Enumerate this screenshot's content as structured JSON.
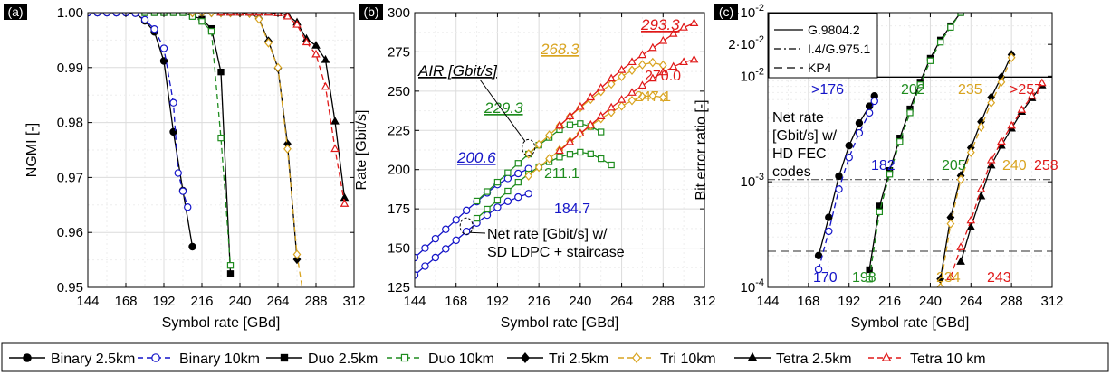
{
  "colors": {
    "binary": "#1414c8",
    "duo": "#1e8c1e",
    "tri": "#d9a420",
    "tetra": "#e01818",
    "black": "#000000",
    "grid": "#dcdcdc"
  },
  "legend": {
    "entries": [
      {
        "label": "Binary 2.5km",
        "color": "#000000",
        "dash": "solid",
        "marker": "circle-filled"
      },
      {
        "label": "Binary 10km",
        "color": "#1414c8",
        "dash": "dashed",
        "marker": "circle-open"
      },
      {
        "label": "Duo 2.5km",
        "color": "#000000",
        "dash": "solid",
        "marker": "square-filled"
      },
      {
        "label": "Duo 10km",
        "color": "#1e8c1e",
        "dash": "dashed",
        "marker": "square-open"
      },
      {
        "label": "Tri 2.5km",
        "color": "#000000",
        "dash": "solid",
        "marker": "diamond-filled"
      },
      {
        "label": "Tri 10km",
        "color": "#d9a420",
        "dash": "dashed",
        "marker": "diamond-open"
      },
      {
        "label": "Tetra 2.5km",
        "color": "#000000",
        "dash": "solid",
        "marker": "triangle-filled"
      },
      {
        "label": "Tetra 10 km",
        "color": "#e01818",
        "dash": "dashed",
        "marker": "triangle-open"
      }
    ]
  },
  "chart_data": [
    {
      "type": "line",
      "panel_label": "(a)",
      "xlabel": "Symbol rate [GBd]",
      "ylabel": "NGMI [-]",
      "xlim": [
        144,
        312
      ],
      "ylim": [
        0.95,
        1.0
      ],
      "xticks": [
        144,
        168,
        192,
        216,
        240,
        264,
        288,
        312
      ],
      "xtick_labels": [
        "144",
        "168",
        "192",
        "216",
        "240",
        "264",
        "288",
        "312"
      ],
      "yticks": [
        0.95,
        0.96,
        0.97,
        0.98,
        0.99,
        1.0
      ],
      "ytick_labels": [
        "0.95",
        "0.96",
        "0.97",
        "0.98",
        "0.99",
        "1.00"
      ],
      "grid": true,
      "series": [
        {
          "name": "Binary 2.5km",
          "x": [
            144,
            150,
            156,
            162,
            168,
            174,
            180,
            186,
            192,
            198,
            204,
            210
          ],
          "y": [
            1.0,
            1.0,
            1.0,
            1.0,
            1.0,
            0.9999,
            0.9985,
            0.9965,
            0.9912,
            0.9783,
            0.9676,
            0.9574
          ]
        },
        {
          "name": "Binary 10km",
          "x": [
            144,
            150,
            156,
            162,
            168,
            174,
            180,
            186,
            192,
            198,
            201,
            204,
            207
          ],
          "y": [
            1.0,
            1.0,
            1.0,
            1.0,
            1.0,
            0.9999,
            0.9987,
            0.997,
            0.9935,
            0.9836,
            0.9708,
            0.9675,
            0.9646
          ]
        },
        {
          "name": "Duo 2.5km",
          "x": [
            180,
            186,
            192,
            198,
            204,
            210,
            216,
            222,
            228,
            234
          ],
          "y": [
            1.0,
            1.0,
            1.0,
            1.0,
            1.0,
            0.9994,
            0.9988,
            0.9971,
            0.9892,
            0.9525
          ]
        },
        {
          "name": "Duo 10km",
          "x": [
            180,
            186,
            192,
            198,
            204,
            210,
            216,
            222,
            228,
            234
          ],
          "y": [
            1.0,
            1.0,
            1.0,
            1.0,
            1.0,
            0.9993,
            0.9984,
            0.9966,
            0.9772,
            0.954
          ]
        },
        {
          "name": "Tri 2.5km",
          "x": [
            210,
            216,
            222,
            228,
            234,
            240,
            246,
            252,
            258,
            264,
            270,
            276
          ],
          "y": [
            1.0,
            1.0,
            1.0,
            1.0,
            1.0,
            1.0,
            0.9999,
            0.9989,
            0.9948,
            0.9899,
            0.9761,
            0.9551
          ]
        },
        {
          "name": "Tri 10km",
          "x": [
            210,
            216,
            222,
            228,
            234,
            240,
            246,
            252,
            258,
            264,
            270,
            276,
            282
          ],
          "y": [
            1.0,
            1.0,
            1.0,
            1.0,
            1.0,
            1.0,
            0.9999,
            0.9988,
            0.9945,
            0.99,
            0.9752,
            0.956,
            0.9448
          ]
        },
        {
          "name": "Tetra 2.5km",
          "x": [
            228,
            234,
            240,
            246,
            252,
            258,
            264,
            270,
            276,
            282,
            288,
            294,
            300,
            306
          ],
          "y": [
            1.0,
            1.0,
            1.0,
            1.0,
            1.0,
            1.0,
            0.9999,
            0.9996,
            0.9982,
            0.9952,
            0.994,
            0.9914,
            0.9802,
            0.9663
          ]
        },
        {
          "name": "Tetra 10 km",
          "x": [
            228,
            234,
            240,
            246,
            252,
            258,
            264,
            270,
            276,
            282,
            288,
            294,
            300,
            306
          ],
          "y": [
            1.0,
            1.0,
            1.0,
            1.0,
            1.0,
            1.0,
            0.9999,
            0.9993,
            0.9978,
            0.9946,
            0.9924,
            0.9865,
            0.9752,
            0.9652
          ]
        }
      ]
    },
    {
      "type": "line",
      "panel_label": "(b)",
      "xlabel": "Symbol rate [GBd]",
      "ylabel": "Rate [Gbit/s]",
      "xlim": [
        144,
        312
      ],
      "ylim": [
        125,
        300
      ],
      "xticks": [
        144,
        168,
        192,
        216,
        240,
        264,
        288,
        312
      ],
      "xtick_labels": [
        "144",
        "168",
        "192",
        "216",
        "240",
        "264",
        "288",
        "312"
      ],
      "yticks": [
        125,
        150,
        175,
        200,
        225,
        250,
        275,
        300
      ],
      "ytick_labels": [
        "125",
        "150",
        "175",
        "200",
        "225",
        "250",
        "275",
        "300"
      ],
      "grid": true,
      "series": [
        {
          "name": "Binary AIR",
          "x": [
            144,
            150,
            156,
            162,
            168,
            174,
            180,
            186,
            192,
            198,
            204,
            210
          ],
          "y": [
            144.0,
            150.0,
            156.0,
            162.0,
            168.0,
            174.0,
            179.6,
            185.2,
            190.5,
            194.4,
            197.5,
            200.6
          ]
        },
        {
          "name": "Binary net",
          "x": [
            144,
            150,
            156,
            162,
            168,
            174,
            180,
            186,
            192,
            198,
            204,
            210
          ],
          "y": [
            132.8,
            138.5,
            144.0,
            149.5,
            155.0,
            160.6,
            166.0,
            171.0,
            176.0,
            179.8,
            182.5,
            184.7
          ]
        },
        {
          "name": "Duo AIR",
          "x": [
            180,
            186,
            192,
            198,
            204,
            210,
            216,
            222,
            228,
            234,
            240,
            246,
            252
          ],
          "y": [
            180.0,
            186.0,
            192.0,
            198.0,
            204.0,
            209.9,
            215.6,
            220.5,
            225.5,
            228.5,
            229.3,
            227.5,
            224.0
          ]
        },
        {
          "name": "Duo net",
          "x": [
            180,
            186,
            192,
            198,
            204,
            210,
            216,
            222,
            228,
            234,
            240,
            246,
            252,
            258
          ],
          "y": [
            169.0,
            174.8,
            180.5,
            186.3,
            192.0,
            197.2,
            201.8,
            205.0,
            208.0,
            209.8,
            211.1,
            210.0,
            207.0,
            203.0
          ]
        },
        {
          "name": "Tri AIR",
          "x": [
            210,
            216,
            222,
            228,
            234,
            240,
            246,
            252,
            258,
            264,
            270,
            276,
            282,
            288
          ],
          "y": [
            210.0,
            216.0,
            222.0,
            228.0,
            233.8,
            239.5,
            244.8,
            249.8,
            254.5,
            259.3,
            263.3,
            266.8,
            268.3,
            266.5
          ]
        },
        {
          "name": "Tri net",
          "x": [
            210,
            216,
            222,
            228,
            234,
            240,
            246,
            252,
            258,
            264,
            270,
            276,
            282,
            288
          ],
          "y": [
            196.0,
            201.5,
            207.0,
            212.5,
            218.0,
            223.0,
            228.0,
            232.5,
            236.5,
            240.5,
            244.0,
            246.5,
            247.1,
            246.0
          ]
        },
        {
          "name": "Tetra AIR",
          "x": [
            228,
            234,
            240,
            246,
            252,
            258,
            264,
            270,
            276,
            282,
            288,
            294,
            300,
            306
          ],
          "y": [
            228.0,
            234.0,
            240.0,
            246.0,
            252.0,
            258.0,
            263.5,
            268.5,
            273.0,
            277.5,
            282.0,
            286.5,
            290.5,
            293.3
          ]
        },
        {
          "name": "Tetra net",
          "x": [
            228,
            234,
            240,
            246,
            252,
            258,
            264,
            270,
            276,
            282,
            288,
            294,
            300,
            306
          ],
          "y": [
            212.0,
            217.5,
            223.0,
            228.5,
            234.0,
            239.5,
            244.5,
            249.0,
            253.5,
            258.0,
            262.0,
            265.5,
            268.5,
            270.0
          ]
        }
      ],
      "annotations": [
        {
          "text": "AIR [Gbit/s]"
        },
        {
          "text": "Net rate [Gbit/s] w/"
        },
        {
          "text": "SD LDPC + staircase"
        },
        {
          "text": "200.6",
          "color": "binary",
          "emphasis": "italic-underline"
        },
        {
          "text": "229.3",
          "color": "duo",
          "emphasis": "italic-underline"
        },
        {
          "text": "268.3",
          "color": "tri",
          "emphasis": "italic-underline"
        },
        {
          "text": "293.3",
          "color": "tetra",
          "emphasis": "italic-underline"
        },
        {
          "text": "184.7",
          "color": "binary"
        },
        {
          "text": "211.1",
          "color": "duo"
        },
        {
          "text": "247.1",
          "color": "tri"
        },
        {
          "text": "270.0",
          "color": "tetra"
        }
      ]
    },
    {
      "type": "line",
      "panel_label": "(c)",
      "xlabel": "Symbol rate [GBd]",
      "ylabel": "Bit error ratio [-]",
      "xlim": [
        144,
        312
      ],
      "ylim": [
        0.0001,
        0.04
      ],
      "yscale": "log",
      "xticks": [
        144,
        168,
        192,
        216,
        240,
        264,
        288,
        312
      ],
      "xtick_labels": [
        "144",
        "168",
        "192",
        "216",
        "240",
        "264",
        "288",
        "312"
      ],
      "yticks": [
        0.0001,
        0.001,
        0.01,
        0.02,
        0.04
      ],
      "ytick_labels": [
        "10-4",
        "10-3",
        "10-2",
        "2·10-2",
        "4·10-2"
      ],
      "grid": true,
      "thresholds": [
        {
          "name": "G.9804.2",
          "ber": 0.0098
        },
        {
          "name": "I.4/G.975.1",
          "ber": 0.00105
        },
        {
          "name": "KP4",
          "ber": 0.00022
        }
      ],
      "threshold_legend": [
        "G.9804.2",
        "I.4/G.975.1",
        "KP4"
      ],
      "series": [
        {
          "name": "Binary 2.5km",
          "x": [
            174,
            180,
            186,
            192,
            198,
            204,
            207
          ],
          "y": [
            0.0002,
            0.00046,
            0.00113,
            0.0022,
            0.0036,
            0.0052,
            0.0065
          ]
        },
        {
          "name": "Binary 10km",
          "x": [
            174,
            180,
            186,
            192,
            198,
            204,
            207
          ],
          "y": [
            0.000148,
            0.00034,
            0.00085,
            0.0017,
            0.0029,
            0.0045,
            0.0058
          ]
        },
        {
          "name": "Duo 2.5km",
          "x": [
            204,
            210,
            216,
            222,
            228,
            234,
            240,
            246,
            252,
            258
          ],
          "y": [
            0.000147,
            0.00059,
            0.00128,
            0.0026,
            0.0049,
            0.0088,
            0.0148,
            0.022,
            0.03,
            0.04
          ]
        },
        {
          "name": "Duo 10km",
          "x": [
            204,
            210,
            216,
            222,
            228,
            234,
            240,
            246,
            252,
            258
          ],
          "y": [
            0.00012,
            0.00052,
            0.00118,
            0.0024,
            0.0045,
            0.0083,
            0.014,
            0.021,
            0.029,
            0.04
          ]
        },
        {
          "name": "Tri 2.5km",
          "x": [
            246,
            252,
            258,
            264,
            270,
            276,
            282,
            288
          ],
          "y": [
            0.00012,
            0.00046,
            0.00114,
            0.0021,
            0.0037,
            0.0063,
            0.0098,
            0.016
          ]
        },
        {
          "name": "Tri 10km",
          "x": [
            246,
            252,
            258,
            264,
            270,
            276,
            282,
            288
          ],
          "y": [
            0.0001,
            0.0004,
            0.00105,
            0.0019,
            0.0033,
            0.0056,
            0.0088,
            0.015
          ]
        },
        {
          "name": "Tetra 2.5km",
          "x": [
            258,
            264,
            270,
            276,
            282,
            288,
            294,
            300,
            306
          ],
          "y": [
            0.000175,
            0.00037,
            0.00073,
            0.00143,
            0.0022,
            0.0032,
            0.0046,
            0.0062,
            0.0082
          ]
        },
        {
          "name": "Tetra 10 km",
          "x": [
            252,
            258,
            264,
            270,
            276,
            282,
            288,
            294,
            300,
            306
          ],
          "y": [
            0.000125,
            0.00024,
            0.00043,
            0.00085,
            0.0016,
            0.0024,
            0.0034,
            0.0048,
            0.0065,
            0.0086
          ]
        }
      ],
      "annotations": [
        {
          "text": ">176",
          "color": "binary"
        },
        {
          "text": "202",
          "color": "duo"
        },
        {
          "text": "235",
          "color": "tri"
        },
        {
          "text": ">257",
          "color": "tetra"
        },
        {
          "text": "182",
          "color": "binary"
        },
        {
          "text": "205",
          "color": "duo"
        },
        {
          "text": "240",
          "color": "tri"
        },
        {
          "text": "258",
          "color": "tetra"
        },
        {
          "text": "170",
          "color": "binary"
        },
        {
          "text": "198",
          "color": "duo"
        },
        {
          "text": "234",
          "color": "tri"
        },
        {
          "text": "243",
          "color": "tetra"
        },
        {
          "text": "Net rate"
        },
        {
          "text": "[Gbit/s] w/"
        },
        {
          "text": "HD FEC"
        },
        {
          "text": "codes"
        }
      ]
    }
  ]
}
